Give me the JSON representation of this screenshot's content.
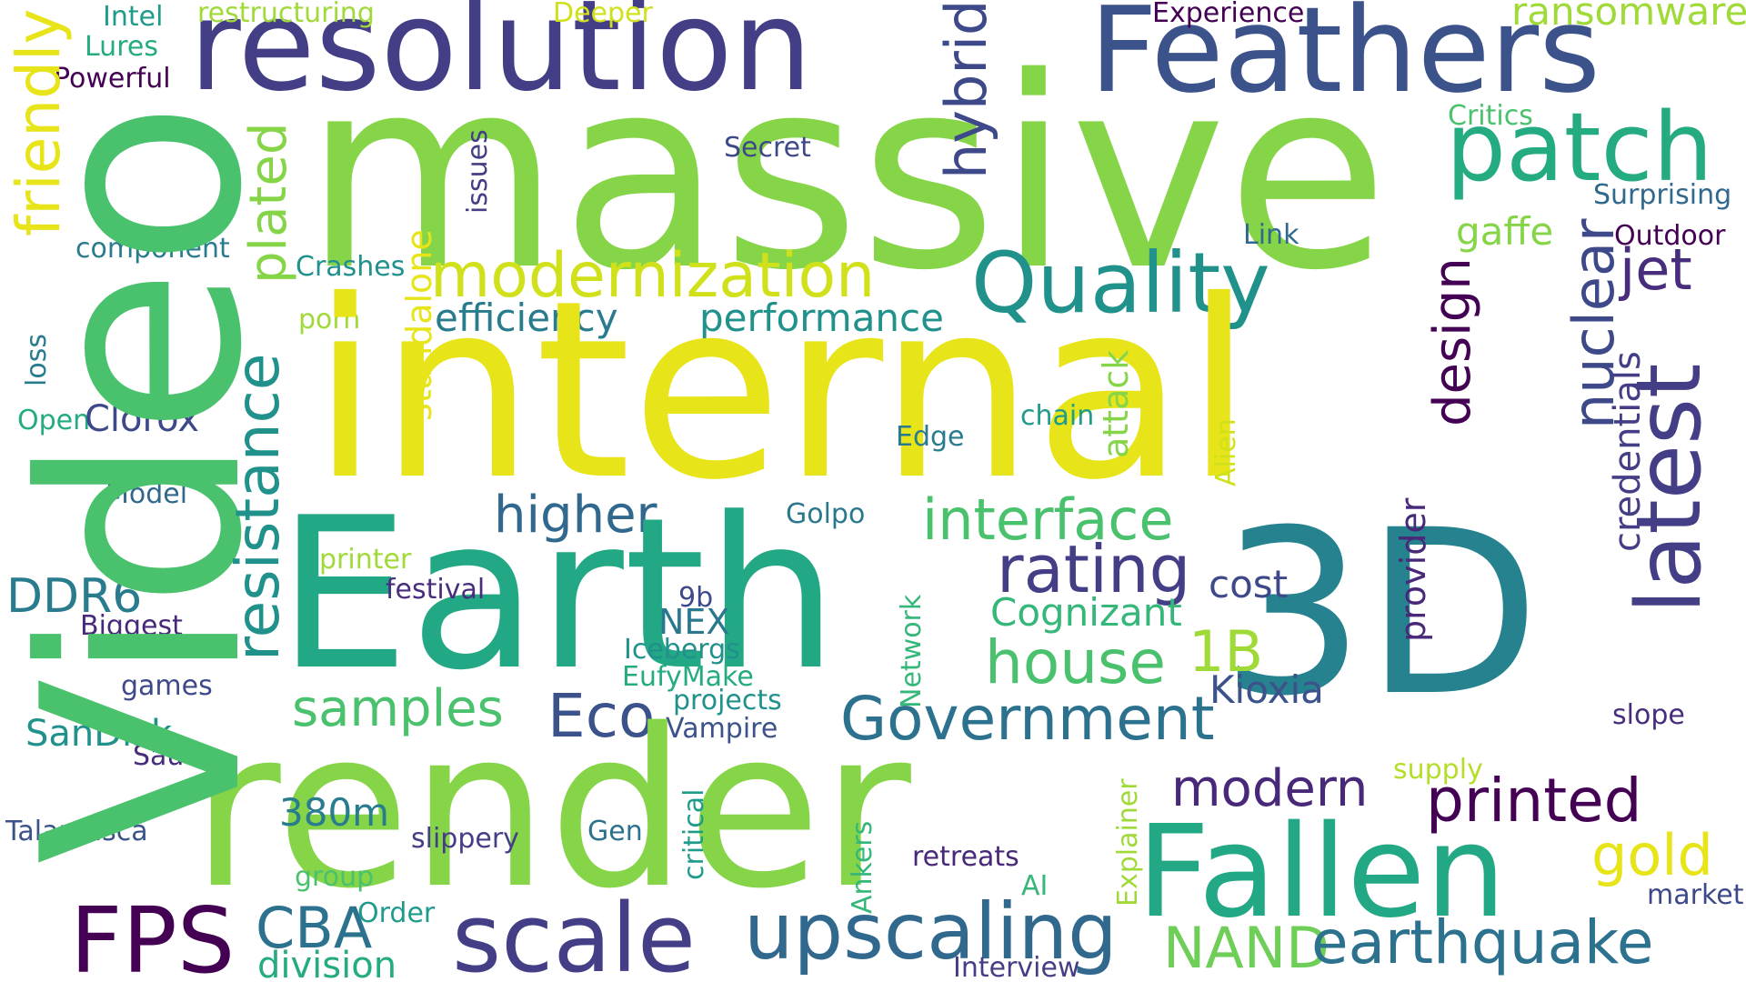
{
  "words": [
    {
      "text": "resolution",
      "color": "#433e85",
      "vertical": false
    },
    {
      "text": "Feathers",
      "color": "#3b528b",
      "vertical": false
    },
    {
      "text": "ransomware",
      "color": "#a0da39",
      "vertical": false
    },
    {
      "text": "Intel",
      "color": "#1e9b8a",
      "vertical": false
    },
    {
      "text": "restructuring",
      "color": "#a0da39",
      "vertical": false
    },
    {
      "text": "Deeper",
      "color": "#d0e11c",
      "vertical": false
    },
    {
      "text": "Experience",
      "color": "#440154",
      "vertical": false
    },
    {
      "text": "Lures",
      "color": "#25ab82",
      "vertical": false
    },
    {
      "text": "Powerful",
      "color": "#440154",
      "vertical": false
    },
    {
      "text": "massive",
      "color": "#86d549",
      "vertical": false
    },
    {
      "text": "patch",
      "color": "#25ab82",
      "vertical": false
    },
    {
      "text": "Critics",
      "color": "#4ac16d",
      "vertical": false
    },
    {
      "text": "Secret",
      "color": "#3e4989",
      "vertical": false
    },
    {
      "text": "Surprising",
      "color": "#31688e",
      "vertical": false
    },
    {
      "text": "Outdoor",
      "color": "#440154",
      "vertical": false
    },
    {
      "text": "Link",
      "color": "#31688e",
      "vertical": false
    },
    {
      "text": "gaffe",
      "color": "#86d549",
      "vertical": false
    },
    {
      "text": "component",
      "color": "#287c8e",
      "vertical": false
    },
    {
      "text": "Crashes",
      "color": "#21918c",
      "vertical": false
    },
    {
      "text": "modernization",
      "color": "#d0e11c",
      "vertical": false
    },
    {
      "text": "Quality",
      "color": "#21918c",
      "vertical": false
    },
    {
      "text": "jet",
      "color": "#472d7b",
      "vertical": false
    },
    {
      "text": "porn",
      "color": "#a0da39",
      "vertical": false
    },
    {
      "text": "efficiency",
      "color": "#287c8e",
      "vertical": false
    },
    {
      "text": "performance",
      "color": "#21918c",
      "vertical": false
    },
    {
      "text": "internal",
      "color": "#e7e419",
      "vertical": false
    },
    {
      "text": "Open",
      "color": "#25ab82",
      "vertical": false
    },
    {
      "text": "Clorox",
      "color": "#3e4989",
      "vertical": false
    },
    {
      "text": "Edge",
      "color": "#287c8e",
      "vertical": false
    },
    {
      "text": "chain",
      "color": "#1e9b8a",
      "vertical": false
    },
    {
      "text": "Model",
      "color": "#31688e",
      "vertical": false
    },
    {
      "text": "higher",
      "color": "#31688e",
      "vertical": false
    },
    {
      "text": "interface",
      "color": "#4ac16d",
      "vertical": false
    },
    {
      "text": "Golpo",
      "color": "#2a788e",
      "vertical": false
    },
    {
      "text": "Earth",
      "color": "#22a884",
      "vertical": false
    },
    {
      "text": "3D",
      "color": "#26828e",
      "vertical": false
    },
    {
      "text": "rating",
      "color": "#433e85",
      "vertical": false
    },
    {
      "text": "cost",
      "color": "#3e4989",
      "vertical": false
    },
    {
      "text": "printer",
      "color": "#a0da39",
      "vertical": false
    },
    {
      "text": "DDR6",
      "color": "#287c8e",
      "vertical": false
    },
    {
      "text": "festival",
      "color": "#472d7b",
      "vertical": false
    },
    {
      "text": "9b",
      "color": "#3e4989",
      "vertical": false
    },
    {
      "text": "Cognizant",
      "color": "#35b779",
      "vertical": false
    },
    {
      "text": "NEX",
      "color": "#2a788e",
      "vertical": false
    },
    {
      "text": "Biggest",
      "color": "#482878",
      "vertical": false
    },
    {
      "text": "Icebergs",
      "color": "#21918c",
      "vertical": false
    },
    {
      "text": "house",
      "color": "#4ac16d",
      "vertical": false
    },
    {
      "text": "1B",
      "color": "#a0da39",
      "vertical": false
    },
    {
      "text": "EufyMake",
      "color": "#25ab82",
      "vertical": false
    },
    {
      "text": "games",
      "color": "#3e4989",
      "vertical": false
    },
    {
      "text": "Kioxia",
      "color": "#3b528b",
      "vertical": false
    },
    {
      "text": "samples",
      "color": "#4ac16d",
      "vertical": false
    },
    {
      "text": "projects",
      "color": "#21918c",
      "vertical": false
    },
    {
      "text": "Eco",
      "color": "#3b528b",
      "vertical": false
    },
    {
      "text": "Government",
      "color": "#2c728e",
      "vertical": false
    },
    {
      "text": "SanDisk",
      "color": "#21918c",
      "vertical": false
    },
    {
      "text": "Vampire",
      "color": "#3b528b",
      "vertical": false
    },
    {
      "text": "slope",
      "color": "#472d7b",
      "vertical": false
    },
    {
      "text": "Sauce",
      "color": "#472d7b",
      "vertical": false
    },
    {
      "text": "render",
      "color": "#86d549",
      "vertical": false
    },
    {
      "text": "supply",
      "color": "#b5de2b",
      "vertical": false
    },
    {
      "text": "modern",
      "color": "#482878",
      "vertical": false
    },
    {
      "text": "printed",
      "color": "#440154",
      "vertical": false
    },
    {
      "text": "380m",
      "color": "#287c8e",
      "vertical": false
    },
    {
      "text": "Talamasca",
      "color": "#3b528b",
      "vertical": false
    },
    {
      "text": "slippery",
      "color": "#433e85",
      "vertical": false
    },
    {
      "text": "Gen",
      "color": "#2c728e",
      "vertical": false
    },
    {
      "text": "Fallen",
      "color": "#22a884",
      "vertical": false
    },
    {
      "text": "gold",
      "color": "#e7e419",
      "vertical": false
    },
    {
      "text": "retreats",
      "color": "#482878",
      "vertical": false
    },
    {
      "text": "group",
      "color": "#4ac16d",
      "vertical": false
    },
    {
      "text": "AI",
      "color": "#35b779",
      "vertical": false
    },
    {
      "text": "market",
      "color": "#3e4989",
      "vertical": false
    },
    {
      "text": "FPS",
      "color": "#440154",
      "vertical": false
    },
    {
      "text": "CBA",
      "color": "#2c728e",
      "vertical": false
    },
    {
      "text": "Order",
      "color": "#1e9b8a",
      "vertical": false
    },
    {
      "text": "scale",
      "color": "#433e85",
      "vertical": false
    },
    {
      "text": "upscaling",
      "color": "#31688e",
      "vertical": false
    },
    {
      "text": "NAND",
      "color": "#6ece58",
      "vertical": false
    },
    {
      "text": "earthquake",
      "color": "#2c728e",
      "vertical": false
    },
    {
      "text": "division",
      "color": "#25ab82",
      "vertical": false
    },
    {
      "text": "Interview",
      "color": "#433e85",
      "vertical": false
    },
    {
      "text": "Video",
      "color": "#4ac16d",
      "vertical": true
    },
    {
      "text": "friendly",
      "color": "#e7e419",
      "vertical": true
    },
    {
      "text": "loss",
      "color": "#287c8e",
      "vertical": true
    },
    {
      "text": "plated",
      "color": "#86d549",
      "vertical": true
    },
    {
      "text": "resistance",
      "color": "#21918c",
      "vertical": true
    },
    {
      "text": "issues",
      "color": "#433e85",
      "vertical": true
    },
    {
      "text": "standalone",
      "color": "#e7e419",
      "vertical": true
    },
    {
      "text": "hybrid",
      "color": "#3e4989",
      "vertical": true
    },
    {
      "text": "attack",
      "color": "#86d549",
      "vertical": true
    },
    {
      "text": "Alien",
      "color": "#d0e11c",
      "vertical": true
    },
    {
      "text": "design",
      "color": "#440154",
      "vertical": true
    },
    {
      "text": "nuclear",
      "color": "#3e4989",
      "vertical": true
    },
    {
      "text": "credentials",
      "color": "#433e85",
      "vertical": true
    },
    {
      "text": "latest",
      "color": "#433e85",
      "vertical": true
    },
    {
      "text": "provider",
      "color": "#482878",
      "vertical": true
    },
    {
      "text": "Network",
      "color": "#35b779",
      "vertical": true
    },
    {
      "text": "critical",
      "color": "#1e9b8a",
      "vertical": true
    },
    {
      "text": "Explainer",
      "color": "#a0da39",
      "vertical": true
    },
    {
      "text": "Ankers",
      "color": "#35b779",
      "vertical": true
    }
  ]
}
